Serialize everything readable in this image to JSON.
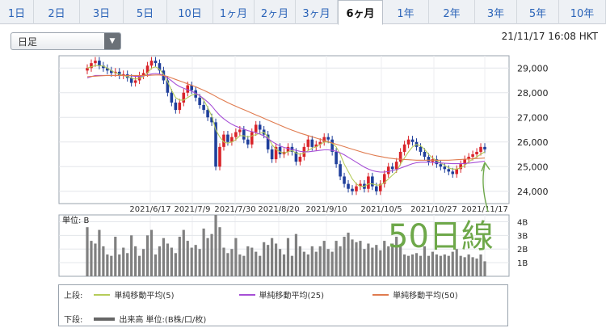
{
  "tabs": [
    "1日",
    "2日",
    "3日",
    "5日",
    "10日",
    "1ヶ月",
    "2ヶ月",
    "3ヶ月",
    "6ヶ月",
    "1年",
    "2年",
    "3年",
    "5年",
    "10年"
  ],
  "active_tab": "6ヶ月",
  "period_select": {
    "value": "日足"
  },
  "timestamp": "21/11/17 16:08 HKT",
  "annotation": "50日線",
  "legend": {
    "upper_label": "上段:",
    "lower_label": "下段:",
    "ma5": "単純移動平均(5)",
    "ma25": "単純移動平均(25)",
    "ma50": "単純移動平均(50)",
    "volume": "出来高 単位:(B株/口/枚)"
  },
  "colors": {
    "ma5": "#b5cc5a",
    "ma25": "#a64fd6",
    "ma50": "#e07b4f",
    "up": "#d9242a",
    "down": "#1f3f9b",
    "volume": "#808080",
    "annotation": "#6ea84a"
  },
  "chart_data": {
    "type": "line",
    "x_ticks": [
      "2021/6/17",
      "2021/7/9",
      "2021/7/30",
      "2021/8/20",
      "2021/9/10",
      "2021/10/5",
      "2021/10/27",
      "2021/11/17"
    ],
    "price_ylim": [
      23500,
      29500
    ],
    "price_ticks": [
      "29,000",
      "28,000",
      "27,000",
      "26,000",
      "25,000",
      "24,000"
    ],
    "close": [
      29000,
      29200,
      29300,
      29100,
      29000,
      28900,
      28800,
      28850,
      28700,
      28750,
      28600,
      28400,
      28500,
      28700,
      28800,
      29100,
      29300,
      29200,
      28900,
      28500,
      28000,
      27600,
      27300,
      27600,
      28000,
      28300,
      28100,
      27800,
      27500,
      27300,
      27000,
      26800,
      25000,
      25800,
      26300,
      26000,
      26200,
      26400,
      26500,
      26100,
      25900,
      26400,
      26700,
      26500,
      26300,
      25700,
      25300,
      25800,
      25500,
      25600,
      25800,
      25600,
      25200,
      25400,
      25800,
      26100,
      25800,
      25900,
      26000,
      26200,
      26100,
      25600,
      25100,
      24600,
      24300,
      24100,
      24000,
      24200,
      24300,
      24100,
      24600,
      24200,
      24000,
      24300,
      24700,
      25000,
      24900,
      25200,
      25600,
      25900,
      26100,
      26000,
      25800,
      25600,
      25400,
      25200,
      25300,
      25100,
      25000,
      24900,
      24800,
      24700,
      24900,
      25100,
      25300,
      25400,
      25500,
      25600,
      25800,
      25700
    ],
    "series": [
      {
        "name": "単純移動平均(5)",
        "values": [
          29000,
          29050,
          29100,
          29100,
          29080,
          29000,
          28900,
          28800,
          28750,
          28700,
          28650,
          28600,
          28550,
          28600,
          28650,
          28800,
          29000,
          29050,
          28950,
          28750,
          28450,
          28100,
          27800,
          27700,
          27700,
          27800,
          27900,
          27950,
          27900,
          27700,
          27400,
          27050,
          26500,
          26200,
          26000,
          25950,
          26000,
          26100,
          26250,
          26250,
          26200,
          26250,
          26300,
          26350,
          26400,
          26200,
          25900,
          25700,
          25600,
          25550,
          25600,
          25650,
          25550,
          25500,
          25550,
          25650,
          25750,
          25800,
          25900,
          26000,
          26000,
          25950,
          25800,
          25500,
          25100,
          24800,
          24500,
          24300,
          24200,
          24200,
          24300,
          24300,
          24250,
          24250,
          24350,
          24500,
          24650,
          24800,
          25100,
          25350,
          25600,
          25800,
          25900,
          25850,
          25700,
          25500,
          25350,
          25250,
          25150,
          25050,
          24950,
          24900,
          24900,
          24950,
          25050,
          25200,
          25300,
          25400,
          25500,
          25600
        ]
      },
      {
        "name": "単純移動平均(25)",
        "values": [
          28600,
          28650,
          28700,
          28700,
          28700,
          28700,
          28700,
          28700,
          28700,
          28700,
          28700,
          28680,
          28660,
          28660,
          28680,
          28720,
          28760,
          28780,
          28760,
          28700,
          28600,
          28480,
          28350,
          28250,
          28180,
          28120,
          28060,
          27980,
          27880,
          27760,
          27620,
          27460,
          27260,
          27080,
          26940,
          26820,
          26720,
          26640,
          26580,
          26520,
          26460,
          26420,
          26380,
          26320,
          26240,
          26140,
          26020,
          25920,
          25840,
          25780,
          25740,
          25700,
          25660,
          25620,
          25600,
          25600,
          25620,
          25640,
          25660,
          25680,
          25680,
          25660,
          25620,
          25560,
          25480,
          25380,
          25280,
          25180,
          25080,
          24980,
          24900,
          24840,
          24800,
          24780,
          24780,
          24800,
          24840,
          24880,
          24940,
          25000,
          25060,
          25120,
          25160,
          25180,
          25180,
          25180,
          25170,
          25160,
          25150,
          25140,
          25130,
          25120,
          25120,
          25120,
          25130,
          25140,
          25160,
          25180,
          25200,
          25220
        ]
      },
      {
        "name": "単純移動平均(50)",
        "values": [
          28650,
          28660,
          28670,
          28680,
          28690,
          28700,
          28700,
          28700,
          28700,
          28700,
          28700,
          28700,
          28700,
          28700,
          28700,
          28700,
          28710,
          28720,
          28720,
          28700,
          28660,
          28600,
          28540,
          28480,
          28420,
          28360,
          28300,
          28240,
          28170,
          28100,
          28020,
          27940,
          27850,
          27760,
          27680,
          27600,
          27520,
          27450,
          27380,
          27310,
          27240,
          27170,
          27100,
          27030,
          26960,
          26890,
          26820,
          26750,
          26680,
          26610,
          26540,
          26480,
          26420,
          26360,
          26310,
          26260,
          26210,
          26160,
          26110,
          26060,
          26010,
          25960,
          25910,
          25860,
          25810,
          25760,
          25710,
          25660,
          25610,
          25560,
          25520,
          25480,
          25440,
          25410,
          25380,
          25350,
          25330,
          25310,
          25300,
          25290,
          25280,
          25270,
          25260,
          25260,
          25260,
          25260,
          25260,
          25260,
          25260,
          25260,
          25260,
          25270,
          25280,
          25290,
          25300,
          25310,
          25320,
          25330,
          25340,
          25350
        ]
      }
    ],
    "volume_ylim": [
      0,
      4.5
    ],
    "volume_ticks": [
      "4B",
      "3B",
      "2B",
      "1B"
    ],
    "volume_label": "単位: B",
    "volume": [
      3.6,
      2.6,
      2.4,
      3.4,
      2.2,
      1.6,
      1.5,
      2.9,
      1.6,
      2.1,
      1.7,
      3.0,
      2.2,
      1.5,
      2.0,
      3.0,
      3.4,
      1.6,
      2.2,
      2.8,
      2.4,
      2.1,
      1.7,
      2.9,
      3.4,
      2.6,
      2.1,
      2.3,
      2.0,
      3.5,
      2.8,
      3.1,
      4.5,
      3.6,
      2.1,
      1.7,
      2.0,
      2.8,
      1.6,
      1.5,
      2.2,
      2.1,
      1.8,
      1.5,
      2.5,
      2.3,
      2.8,
      2.4,
      2.0,
      1.6,
      2.8,
      1.5,
      3.1,
      2.2,
      1.8,
      1.6,
      2.2,
      1.8,
      2.2,
      2.6,
      2.0,
      1.8,
      2.6,
      2.2,
      2.9,
      3.2,
      2.7,
      2.5,
      2.6,
      2.0,
      2.4,
      2.1,
      2.3,
      1.9,
      2.6,
      2.2,
      2.4,
      2.9,
      2.3,
      1.6,
      1.5,
      1.6,
      1.7,
      1.5,
      2.2,
      1.5,
      1.8,
      1.6,
      1.5,
      1.6,
      1.5,
      1.8,
      2.0,
      1.5,
      1.4,
      1.6,
      1.4,
      1.3,
      1.6,
      1.1
    ]
  }
}
